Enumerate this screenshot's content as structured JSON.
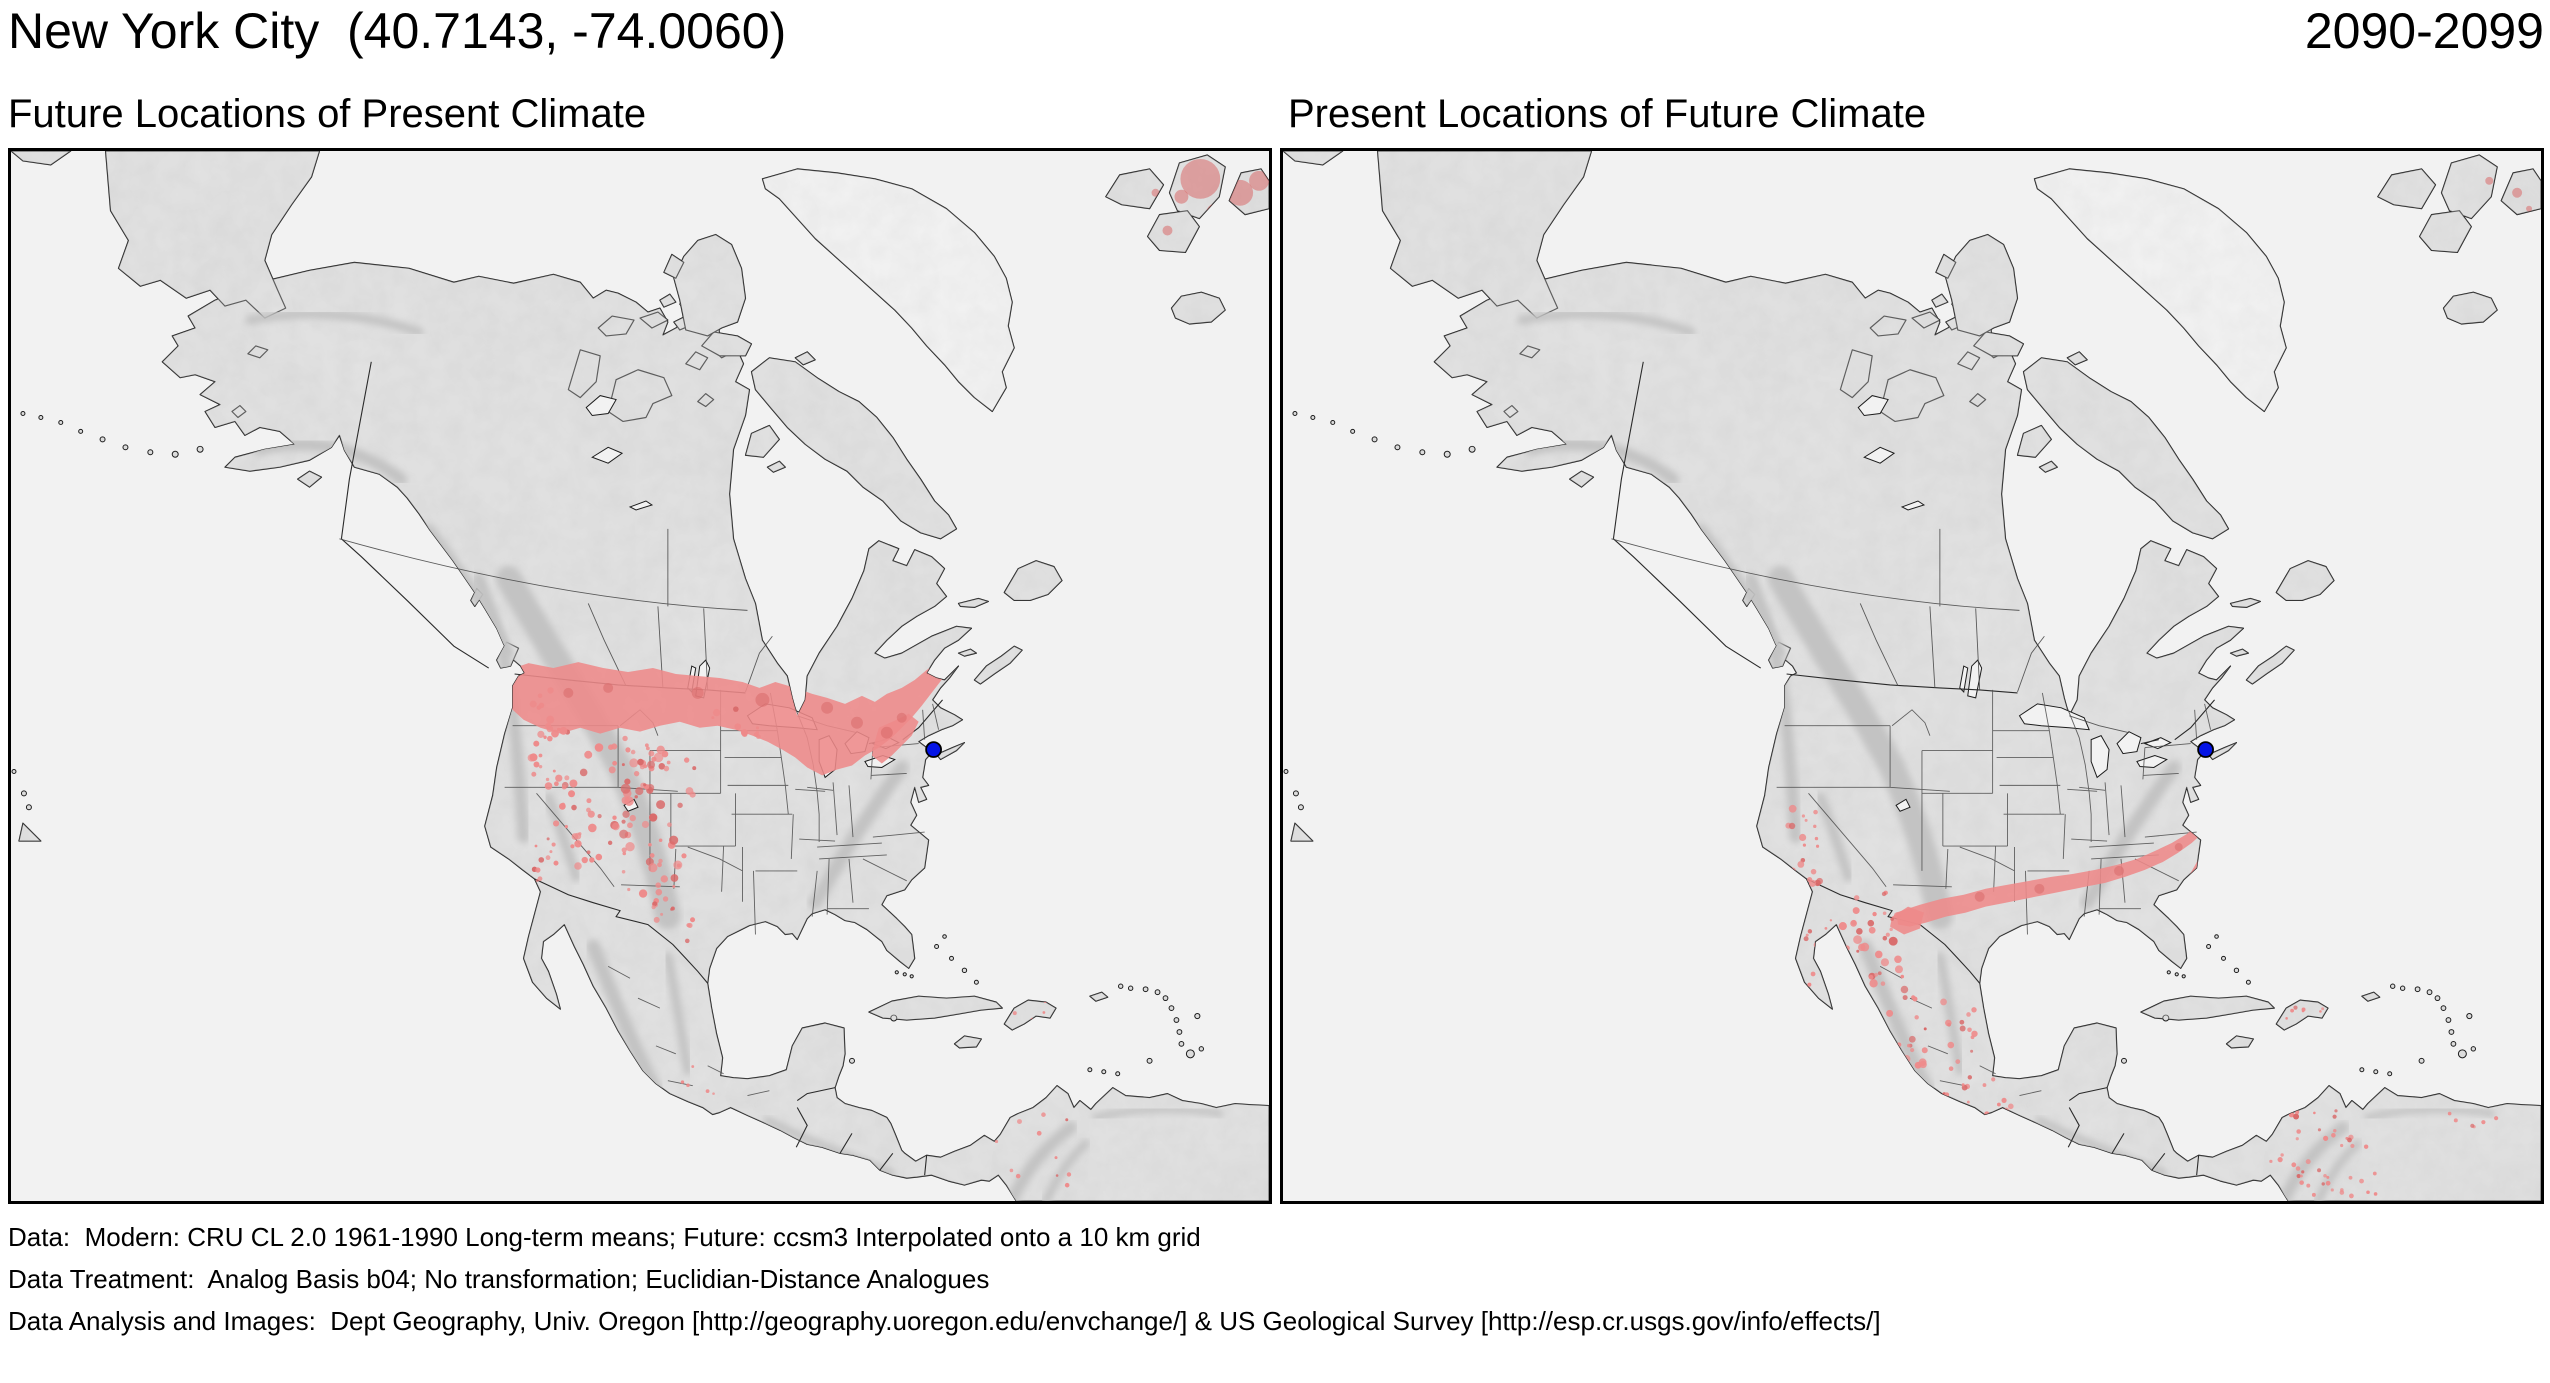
{
  "header": {
    "title": "New York City  (40.7143, -74.0060)",
    "period": "2090-2099"
  },
  "panels": [
    {
      "id": "future-locations",
      "title": "Future Locations of Present Climate"
    },
    {
      "id": "present-locations",
      "title": "Present Locations of Future Climate"
    }
  ],
  "marker": {
    "city": "New York City",
    "lat": "40.7143",
    "lon": "-74.0060",
    "color": "#0414e6"
  },
  "colors": {
    "ocean": "#f2f2f2",
    "land": "#dcdcdc",
    "ice": "#f4f4f4",
    "coast": "#1c1c1c",
    "state_line": "#4a4a4a",
    "analog_region": "#ee8a8a",
    "analog_region_dense": "#d96a6a",
    "frame": "#000000"
  },
  "footer": {
    "lines": [
      "Data:  Modern: CRU CL 2.0 1961-1990 Long-term means; Future: ccsm3 Interpolated onto a 10 km grid",
      "Data Treatment:  Analog Basis b04; No transformation; Euclidian-Distance Analogues",
      "Data Analysis and Images:  Dept Geography, Univ. Oregon [http://geography.uoregon.edu/envchange/] & US Geological Survey [http://esp.cr.usgs.gov/info/effects/]"
    ]
  }
}
